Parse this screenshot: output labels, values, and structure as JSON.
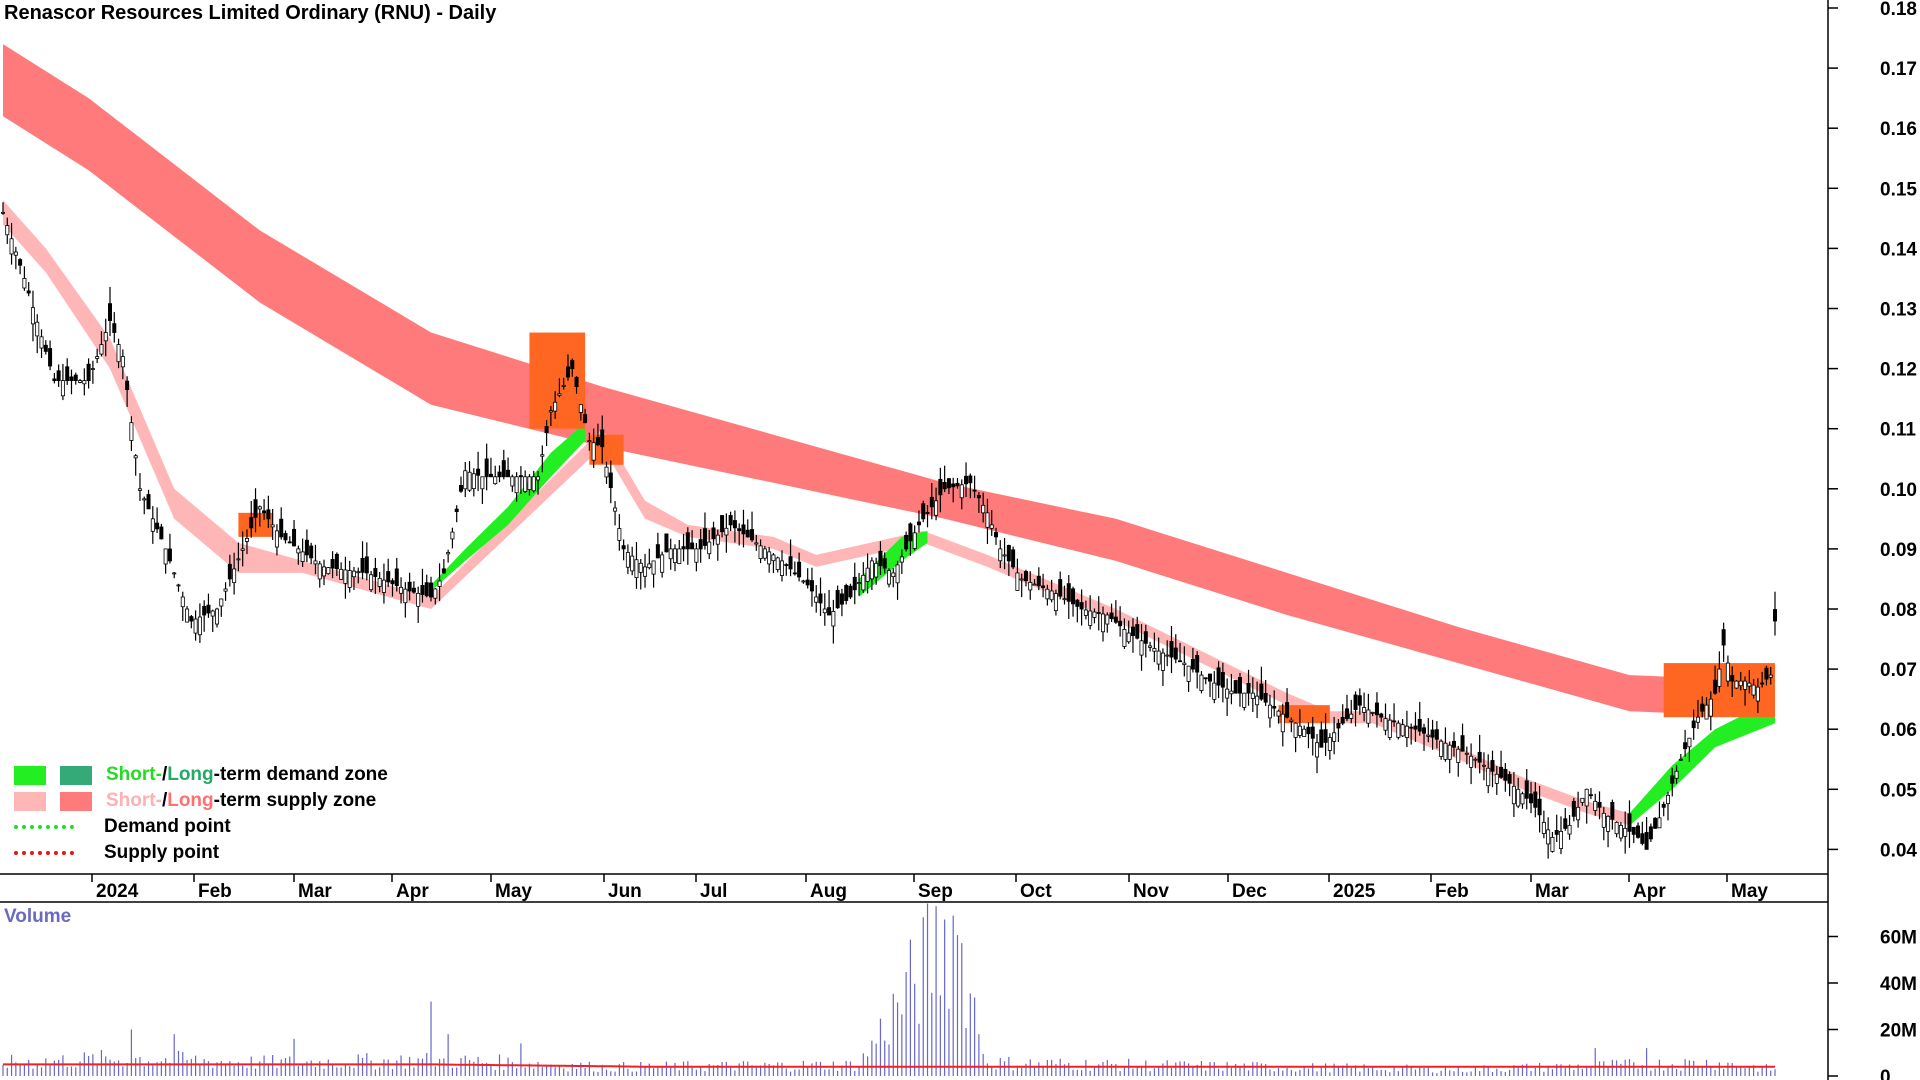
{
  "chart_data": {
    "type": "candlestick",
    "title": "Renascor Resources Limited Ordinary (RNU) - Daily",
    "price_axis": {
      "ticks": [
        "0.18",
        "0.17",
        "0.16",
        "0.15",
        "0.14",
        "0.13",
        "0.12",
        "0.11",
        "0.10",
        "0.09",
        "0.08",
        "0.07",
        "0.06",
        "0.05",
        "0.04"
      ],
      "range": [
        0.034,
        0.18
      ]
    },
    "volume_axis": {
      "label": "Volume",
      "ticks": [
        "60M",
        "40M",
        "20M",
        "0"
      ],
      "range": [
        0,
        70
      ]
    },
    "x_labels": [
      "2024",
      "Feb",
      "Mar",
      "Apr",
      "May",
      "Jun",
      "Jul",
      "Aug",
      "Sep",
      "Oct",
      "Nov",
      "Dec",
      "2025",
      "Feb",
      "Mar",
      "Apr",
      "May"
    ],
    "price_path": [
      [
        0,
        0.146
      ],
      [
        5,
        0.135
      ],
      [
        12,
        0.118
      ],
      [
        20,
        0.118
      ],
      [
        25,
        0.128
      ],
      [
        28,
        0.122
      ],
      [
        32,
        0.1
      ],
      [
        38,
        0.09
      ],
      [
        44,
        0.078
      ],
      [
        50,
        0.08
      ],
      [
        56,
        0.09
      ],
      [
        60,
        0.097
      ],
      [
        65,
        0.092
      ],
      [
        75,
        0.087
      ],
      [
        85,
        0.086
      ],
      [
        95,
        0.083
      ],
      [
        100,
        0.082
      ],
      [
        103,
        0.086
      ],
      [
        108,
        0.103
      ],
      [
        112,
        0.102
      ],
      [
        118,
        0.102
      ],
      [
        125,
        0.102
      ],
      [
        128,
        0.113
      ],
      [
        133,
        0.12
      ],
      [
        137,
        0.108
      ],
      [
        140,
        0.107
      ],
      [
        145,
        0.09
      ],
      [
        150,
        0.087
      ],
      [
        156,
        0.09
      ],
      [
        163,
        0.09
      ],
      [
        170,
        0.094
      ],
      [
        176,
        0.091
      ],
      [
        182,
        0.088
      ],
      [
        188,
        0.084
      ],
      [
        193,
        0.079
      ],
      [
        198,
        0.082
      ],
      [
        203,
        0.088
      ],
      [
        208,
        0.086
      ],
      [
        214,
        0.094
      ],
      [
        220,
        0.1
      ],
      [
        226,
        0.101
      ],
      [
        230,
        0.096
      ],
      [
        233,
        0.09
      ],
      [
        238,
        0.085
      ],
      [
        245,
        0.083
      ],
      [
        252,
        0.08
      ],
      [
        258,
        0.079
      ],
      [
        263,
        0.076
      ],
      [
        270,
        0.073
      ],
      [
        276,
        0.071
      ],
      [
        282,
        0.068
      ],
      [
        288,
        0.066
      ],
      [
        292,
        0.066
      ],
      [
        298,
        0.063
      ],
      [
        304,
        0.06
      ],
      [
        308,
        0.057
      ],
      [
        313,
        0.061
      ],
      [
        317,
        0.064
      ],
      [
        322,
        0.062
      ],
      [
        330,
        0.06
      ],
      [
        336,
        0.058
      ],
      [
        342,
        0.056
      ],
      [
        348,
        0.053
      ],
      [
        354,
        0.05
      ],
      [
        358,
        0.047
      ],
      [
        362,
        0.042
      ],
      [
        366,
        0.044
      ],
      [
        370,
        0.05
      ],
      [
        374,
        0.046
      ],
      [
        378,
        0.044
      ],
      [
        382,
        0.042
      ],
      [
        384,
        0.04
      ],
      [
        388,
        0.047
      ],
      [
        392,
        0.055
      ],
      [
        396,
        0.062
      ],
      [
        400,
        0.066
      ],
      [
        402,
        0.074
      ],
      [
        404,
        0.068
      ],
      [
        407,
        0.068
      ],
      [
        410,
        0.067
      ],
      [
        413,
        0.069
      ],
      [
        414,
        0.078
      ]
    ],
    "long_term_supply_zone": {
      "upper": [
        [
          0,
          0.174
        ],
        [
          20,
          0.165
        ],
        [
          60,
          0.143
        ],
        [
          100,
          0.126
        ],
        [
          140,
          0.117
        ],
        [
          180,
          0.109
        ],
        [
          220,
          0.101
        ],
        [
          260,
          0.095
        ],
        [
          300,
          0.086
        ],
        [
          340,
          0.077
        ],
        [
          380,
          0.069
        ],
        [
          414,
          0.068
        ]
      ],
      "lower": [
        [
          0,
          0.162
        ],
        [
          20,
          0.153
        ],
        [
          60,
          0.131
        ],
        [
          100,
          0.114
        ],
        [
          140,
          0.107
        ],
        [
          180,
          0.101
        ],
        [
          220,
          0.095
        ],
        [
          260,
          0.088
        ],
        [
          300,
          0.079
        ],
        [
          340,
          0.071
        ],
        [
          380,
          0.063
        ],
        [
          414,
          0.062
        ]
      ]
    },
    "short_term_supply_zone": {
      "upper": [
        [
          0,
          0.148
        ],
        [
          10,
          0.14
        ],
        [
          25,
          0.125
        ],
        [
          40,
          0.1
        ],
        [
          55,
          0.091
        ],
        [
          70,
          0.088
        ],
        [
          85,
          0.085
        ],
        [
          100,
          0.082
        ],
        [
          140,
          0.11
        ],
        [
          150,
          0.098
        ],
        [
          160,
          0.094
        ],
        [
          180,
          0.092
        ],
        [
          190,
          0.089
        ],
        [
          215,
          0.093
        ],
        [
          230,
          0.089
        ],
        [
          240,
          0.086
        ],
        [
          260,
          0.08
        ],
        [
          280,
          0.073
        ],
        [
          300,
          0.066
        ],
        [
          310,
          0.063
        ],
        [
          320,
          0.063
        ],
        [
          340,
          0.057
        ],
        [
          355,
          0.052
        ],
        [
          370,
          0.048
        ],
        [
          380,
          0.046
        ]
      ],
      "lower": [
        [
          0,
          0.144
        ],
        [
          10,
          0.136
        ],
        [
          25,
          0.12
        ],
        [
          40,
          0.095
        ],
        [
          55,
          0.086
        ],
        [
          70,
          0.086
        ],
        [
          85,
          0.083
        ],
        [
          100,
          0.08
        ],
        [
          140,
          0.107
        ],
        [
          150,
          0.095
        ],
        [
          160,
          0.092
        ],
        [
          180,
          0.09
        ],
        [
          190,
          0.087
        ],
        [
          215,
          0.091
        ],
        [
          230,
          0.087
        ],
        [
          240,
          0.084
        ],
        [
          260,
          0.078
        ],
        [
          280,
          0.071
        ],
        [
          300,
          0.064
        ],
        [
          310,
          0.061
        ],
        [
          320,
          0.061
        ],
        [
          340,
          0.055
        ],
        [
          355,
          0.05
        ],
        [
          370,
          0.046
        ],
        [
          380,
          0.044
        ]
      ]
    },
    "short_term_demand_zone": [
      {
        "upper": [
          [
            100,
            0.084
          ],
          [
            108,
            0.09
          ],
          [
            118,
            0.097
          ],
          [
            128,
            0.106
          ],
          [
            136,
            0.111
          ]
        ],
        "lower": [
          [
            100,
            0.083
          ],
          [
            108,
            0.088
          ],
          [
            118,
            0.094
          ],
          [
            128,
            0.102
          ],
          [
            136,
            0.108
          ]
        ]
      },
      {
        "upper": [
          [
            200,
            0.085
          ],
          [
            210,
            0.092
          ],
          [
            216,
            0.093
          ]
        ],
        "lower": [
          [
            200,
            0.082
          ],
          [
            210,
            0.088
          ],
          [
            216,
            0.091
          ]
        ]
      },
      {
        "upper": [
          [
            380,
            0.046
          ],
          [
            390,
            0.054
          ],
          [
            400,
            0.06
          ],
          [
            414,
            0.065
          ]
        ],
        "lower": [
          [
            380,
            0.044
          ],
          [
            390,
            0.05
          ],
          [
            400,
            0.057
          ],
          [
            414,
            0.061
          ]
        ]
      }
    ],
    "overlap_zones": [
      {
        "x": [
          55,
          63
        ],
        "upper": 0.096,
        "lower": 0.092
      },
      {
        "x": [
          123,
          136
        ],
        "upper": 0.126,
        "lower": 0.11
      },
      {
        "x": [
          137,
          145
        ],
        "upper": 0.109,
        "lower": 0.104
      },
      {
        "x": [
          298,
          310
        ],
        "upper": 0.064,
        "lower": 0.061
      },
      {
        "x": [
          388,
          414
        ],
        "upper": 0.071,
        "lower": 0.062
      }
    ],
    "volume_path": [
      [
        0,
        6
      ],
      [
        30,
        8
      ],
      [
        60,
        6
      ],
      [
        100,
        7
      ],
      [
        120,
        6
      ],
      [
        140,
        4
      ],
      [
        200,
        5
      ],
      [
        222,
        69
      ],
      [
        230,
        6
      ],
      [
        260,
        5
      ],
      [
        300,
        4
      ],
      [
        340,
        3
      ],
      [
        380,
        5
      ],
      [
        400,
        6
      ],
      [
        414,
        3
      ]
    ],
    "volume_spikes": [
      [
        30,
        20
      ],
      [
        40,
        18
      ],
      [
        68,
        16
      ],
      [
        100,
        32
      ],
      [
        104,
        18
      ],
      [
        121,
        14
      ],
      [
        222,
        69
      ],
      [
        228,
        18
      ],
      [
        372,
        12
      ],
      [
        384,
        12
      ]
    ],
    "volume_ma": [
      [
        0,
        5
      ],
      [
        100,
        5
      ],
      [
        150,
        4
      ],
      [
        220,
        4
      ],
      [
        300,
        4
      ],
      [
        414,
        4
      ]
    ],
    "colors": {
      "long_term_supply": "#ff7a7a",
      "short_term_supply": "#ffb6b6",
      "short_term_demand": "#22ee22",
      "long_term_demand": "#33aa77",
      "overlap": "#ff6622",
      "candle": "#000000",
      "volume_bars": "#6666cc",
      "volume_ma": "#ee2222"
    }
  },
  "legend": {
    "short_prefix": "Short-",
    "slash": " / ",
    "long_word": "Long",
    "demand_suffix": "-term demand zone",
    "supply_suffix": "-term supply zone",
    "demand_point": "Demand point",
    "supply_point": "Supply point"
  }
}
